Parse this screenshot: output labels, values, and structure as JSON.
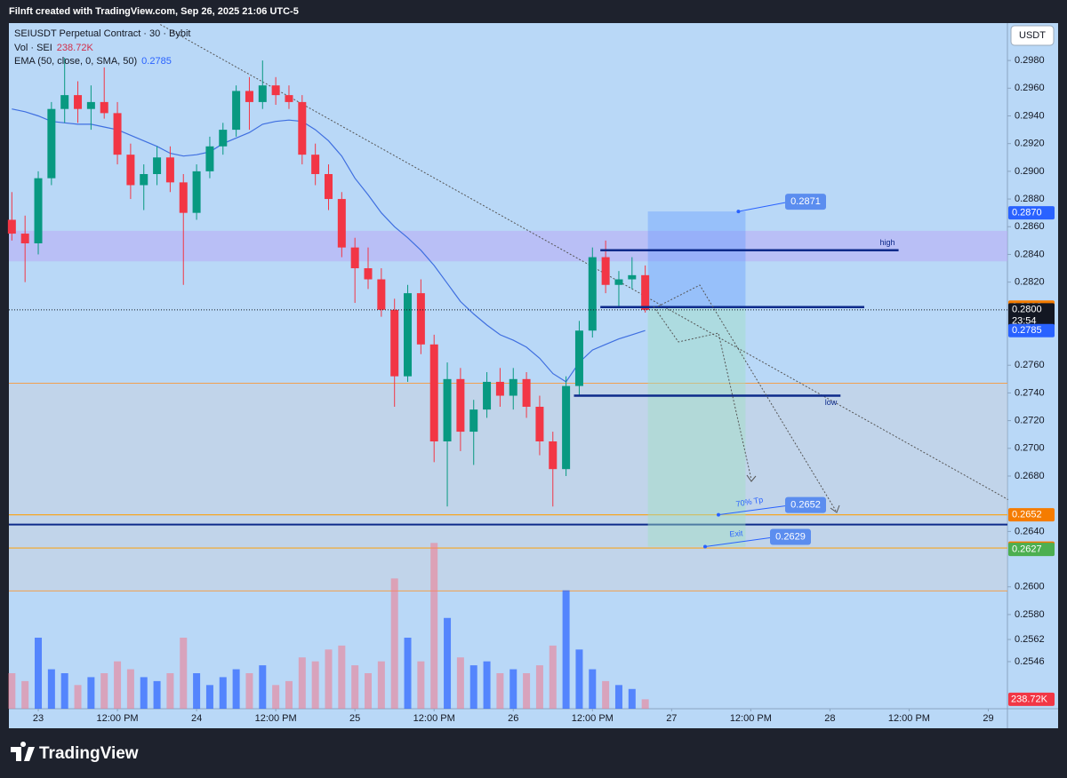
{
  "header": {
    "credit": "Filnft created with TradingView.com, Sep 26, 2025 21:06 UTC-5",
    "brand": "TradingView",
    "currency_button": "USDT"
  },
  "chart_data": {
    "type": "candlestick",
    "title": "SEIUSDT Perpetual Contract · 30 · Bybit",
    "up_color": "#089981",
    "down_color": "#f23645",
    "x": [
      -4,
      -2,
      0,
      2,
      4,
      6,
      8,
      10,
      12,
      14,
      16,
      18,
      20,
      22,
      24,
      26,
      28,
      30,
      32,
      34,
      36,
      38,
      40,
      42,
      44,
      46,
      48,
      50,
      52,
      54,
      56,
      58,
      60,
      62,
      64,
      66,
      68,
      70,
      72,
      74,
      76,
      78,
      80,
      82,
      84,
      86,
      88,
      90,
      92
    ],
    "open": [
      0.2865,
      0.2855,
      0.2848,
      0.2895,
      0.2945,
      0.2955,
      0.2945,
      0.295,
      0.2942,
      0.2912,
      0.289,
      0.2898,
      0.291,
      0.2892,
      0.287,
      0.29,
      0.2918,
      0.293,
      0.2958,
      0.295,
      0.2962,
      0.2955,
      0.295,
      0.2912,
      0.2898,
      0.288,
      0.2845,
      0.283,
      0.2822,
      0.28,
      0.2752,
      0.2812,
      0.2775,
      0.2705,
      0.275,
      0.2712,
      0.2728,
      0.2748,
      0.2738,
      0.275,
      0.273,
      0.2705,
      0.2685,
      0.2745,
      0.2785,
      0.2838,
      0.2818,
      0.2822,
      0.2825
    ],
    "high": [
      0.2885,
      0.2868,
      0.29,
      0.295,
      0.2982,
      0.2965,
      0.2962,
      0.2975,
      0.295,
      0.292,
      0.2905,
      0.2918,
      0.2918,
      0.2898,
      0.2905,
      0.2925,
      0.2935,
      0.2962,
      0.2968,
      0.298,
      0.2968,
      0.2962,
      0.2955,
      0.292,
      0.2905,
      0.2885,
      0.2852,
      0.2845,
      0.283,
      0.2808,
      0.2818,
      0.2822,
      0.2782,
      0.2762,
      0.2758,
      0.2735,
      0.2755,
      0.2758,
      0.2758,
      0.2755,
      0.2738,
      0.2712,
      0.2752,
      0.2792,
      0.2845,
      0.285,
      0.2828,
      0.2838,
      0.2832
    ],
    "low": [
      0.285,
      0.282,
      0.284,
      0.289,
      0.2935,
      0.2935,
      0.293,
      0.2938,
      0.2905,
      0.288,
      0.2872,
      0.289,
      0.2885,
      0.2818,
      0.2865,
      0.2895,
      0.2912,
      0.2925,
      0.293,
      0.2945,
      0.2948,
      0.2945,
      0.2905,
      0.289,
      0.2872,
      0.2838,
      0.2805,
      0.2815,
      0.2795,
      0.273,
      0.2748,
      0.2768,
      0.269,
      0.2658,
      0.2698,
      0.2688,
      0.2722,
      0.273,
      0.2728,
      0.2722,
      0.2695,
      0.2658,
      0.268,
      0.2738,
      0.278,
      0.2812,
      0.2802,
      0.2815,
      0.2798
    ],
    "close": [
      0.2855,
      0.2848,
      0.2895,
      0.2945,
      0.2955,
      0.2945,
      0.295,
      0.2942,
      0.2912,
      0.289,
      0.2898,
      0.291,
      0.2892,
      0.287,
      0.29,
      0.2918,
      0.293,
      0.2958,
      0.295,
      0.2962,
      0.2955,
      0.295,
      0.2912,
      0.2898,
      0.288,
      0.2845,
      0.283,
      0.2822,
      0.28,
      0.2752,
      0.2812,
      0.2775,
      0.2705,
      0.275,
      0.2712,
      0.2728,
      0.2748,
      0.2738,
      0.275,
      0.273,
      0.2705,
      0.2685,
      0.2745,
      0.2785,
      0.2838,
      0.2818,
      0.2822,
      0.2825,
      0.28
    ],
    "volume": {
      "name": "Vol · SEI",
      "last_label": "238.72K",
      "up_color": "rgba(41,98,255,0.7)",
      "down_color": "rgba(242,120,140,0.55)",
      "ylim": [
        0,
        4500
      ],
      "values": [
        900,
        700,
        1800,
        1000,
        900,
        600,
        800,
        900,
        1200,
        1000,
        800,
        700,
        900,
        1800,
        900,
        600,
        800,
        1000,
        900,
        1100,
        600,
        700,
        1300,
        1200,
        1500,
        1600,
        1100,
        900,
        1200,
        3300,
        1800,
        1200,
        4200,
        2300,
        1300,
        1100,
        1200,
        900,
        1000,
        900,
        1100,
        1600,
        3000,
        1500,
        1000,
        700,
        600,
        500,
        238.72
      ]
    },
    "ema": {
      "name": "EMA (50, close, 0, SMA, 50)",
      "last": 0.2785,
      "color": "#3f6fe0",
      "values": [
        0.2945,
        0.2943,
        0.294,
        0.2936,
        0.2935,
        0.2934,
        0.2934,
        0.2932,
        0.293,
        0.2926,
        0.2922,
        0.2918,
        0.2913,
        0.2911,
        0.2912,
        0.2914,
        0.292,
        0.2924,
        0.2928,
        0.2934,
        0.2936,
        0.2937,
        0.2936,
        0.293,
        0.2922,
        0.2911,
        0.2895,
        0.2883,
        0.287,
        0.286,
        0.2852,
        0.2843,
        0.2832,
        0.2819,
        0.2806,
        0.2797,
        0.2789,
        0.2782,
        0.2778,
        0.2773,
        0.2765,
        0.2754,
        0.2748,
        0.2762,
        0.2771,
        0.2775,
        0.2779,
        0.2782,
        0.2785
      ]
    },
    "xlim": [
      -4.45,
      146.9
    ],
    "xticks": [
      {
        "value": 0,
        "label": "23"
      },
      {
        "value": 12,
        "label": "12:00 PM"
      },
      {
        "value": 24,
        "label": "24"
      },
      {
        "value": 36,
        "label": "12:00 PM"
      },
      {
        "value": 48,
        "label": "25"
      },
      {
        "value": 60,
        "label": "12:00 PM"
      },
      {
        "value": 72,
        "label": "26"
      },
      {
        "value": 84,
        "label": "12:00 PM"
      },
      {
        "value": 96,
        "label": "27"
      },
      {
        "value": 108,
        "label": "12:00 PM"
      },
      {
        "value": 120,
        "label": "28"
      },
      {
        "value": 132,
        "label": "12:00 PM"
      },
      {
        "value": 144,
        "label": "29"
      }
    ],
    "ylim": [
      0.2512,
      0.3007
    ],
    "yticks": [
      {
        "value": 0.298,
        "label": "0.2980"
      },
      {
        "value": 0.296,
        "label": "0.2960"
      },
      {
        "value": 0.294,
        "label": "0.2940"
      },
      {
        "value": 0.292,
        "label": "0.2920"
      },
      {
        "value": 0.29,
        "label": "0.2900"
      },
      {
        "value": 0.288,
        "label": "0.2880"
      },
      {
        "value": 0.286,
        "label": "0.2860"
      },
      {
        "value": 0.284,
        "label": "0.2840"
      },
      {
        "value": 0.282,
        "label": "0.2820"
      },
      {
        "value": 0.276,
        "label": "0.2760"
      },
      {
        "value": 0.274,
        "label": "0.2740"
      },
      {
        "value": 0.272,
        "label": "0.2720"
      },
      {
        "value": 0.27,
        "label": "0.2700"
      },
      {
        "value": 0.268,
        "label": "0.2680"
      },
      {
        "value": 0.264,
        "label": "0.2640"
      },
      {
        "value": 0.26,
        "label": "0.2600"
      },
      {
        "value": 0.258,
        "label": "0.2580"
      },
      0.2562,
      0.2546
    ],
    "grid": false,
    "price_tags": [
      {
        "value": 0.287,
        "label": "0.2870",
        "color": "#2962ff"
      },
      {
        "value": 0.2802,
        "color": "#f57c00"
      },
      {
        "value": 0.28,
        "label": "0.2800",
        "color": "#131722",
        "countdown": "23:54"
      },
      {
        "value": 0.2785,
        "color": "#2962ff"
      },
      {
        "value": 0.2652,
        "color": "#f57c00"
      },
      {
        "value": 0.2628,
        "color": "#f57c00"
      },
      {
        "value": 0.2627,
        "color": "#4caf50"
      }
    ],
    "zones": [
      {
        "from": 0.2835,
        "to": 0.2857,
        "color": "rgba(185,175,245,0.6)"
      },
      {
        "from": 0.2597,
        "to": 0.2747,
        "color": "rgba(205,208,218,0.45)"
      }
    ],
    "levels": [
      {
        "value": 0.2747,
        "color": "#f0a050",
        "width": 1
      },
      {
        "value": 0.2652,
        "color": "#f5a623",
        "width": 1.2
      },
      {
        "value": 0.2628,
        "color": "#f5a623",
        "width": 1.2
      },
      {
        "value": 0.2597,
        "color": "#f0a050",
        "width": 1
      },
      {
        "value": 0.2645,
        "color": "#0d2a8a",
        "width": 2
      }
    ],
    "rays": [
      {
        "x": [
          85.2,
          130.4
        ],
        "value": 0.2843,
        "label": "high"
      },
      {
        "x": [
          85.2,
          125.2
        ],
        "value": 0.2802
      },
      {
        "x": [
          81.2,
          121.6
        ],
        "value": 0.2738,
        "label": "low"
      }
    ],
    "trendline": {
      "x": [
        18.5,
        147
      ],
      "values": [
        0.3006,
        0.2663
      ]
    },
    "position": {
      "x": [
        92.4,
        107.2
      ],
      "entry": 0.2802,
      "target": 0.2871,
      "stop": 0.2629,
      "target_tag": 0.2871,
      "tp_label": "70% Tp",
      "tp_tag": 0.2652,
      "exit_label": "Exit",
      "exit_tag": 0.2629
    }
  }
}
